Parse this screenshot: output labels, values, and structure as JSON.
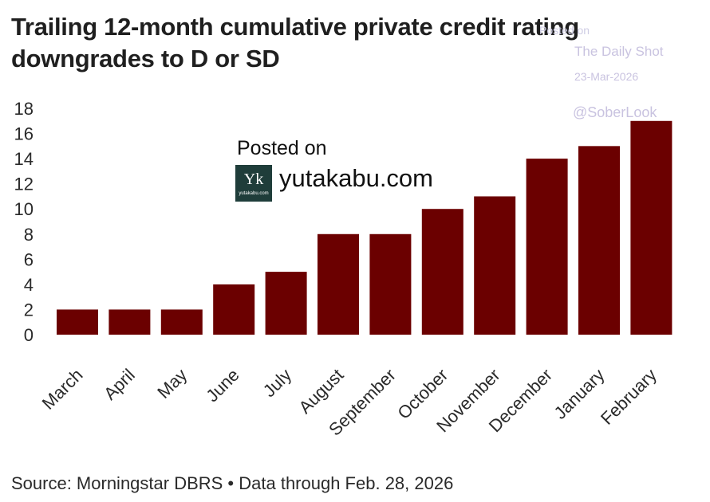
{
  "title_line1": "Trailing 12-month cumulative private credit rating",
  "title_line2": "downgrades to D or SD",
  "watermark": {
    "posted": "Posted on",
    "site": "The Daily Shot",
    "date": "23-Mar-2026",
    "handle": "@SoberLook"
  },
  "overlay": {
    "posted_on": "Posted on",
    "logo_mark": "Yk",
    "logo_sub": "yutakabu.com",
    "site": "yutakabu.com"
  },
  "source": "Source: Morningstar DBRS • Data through Feb. 28, 2026",
  "colors": {
    "bar": "#6b0000",
    "logo_bg": "#1f3d3a",
    "watermark": "#c9c3e0"
  },
  "chart_data": {
    "type": "bar",
    "title": "Trailing 12-month cumulative private credit rating downgrades to D or SD",
    "xlabel": "",
    "ylabel": "",
    "categories": [
      "March",
      "April",
      "May",
      "June",
      "July",
      "August",
      "September",
      "October",
      "November",
      "December",
      "January",
      "February"
    ],
    "values": [
      2,
      2,
      2,
      4,
      5,
      8,
      8,
      10,
      11,
      14,
      15,
      17
    ],
    "ylim": [
      0,
      18
    ],
    "yticks": [
      0,
      2,
      4,
      6,
      8,
      10,
      12,
      14,
      16,
      18
    ],
    "grid": false,
    "legend": "none"
  }
}
